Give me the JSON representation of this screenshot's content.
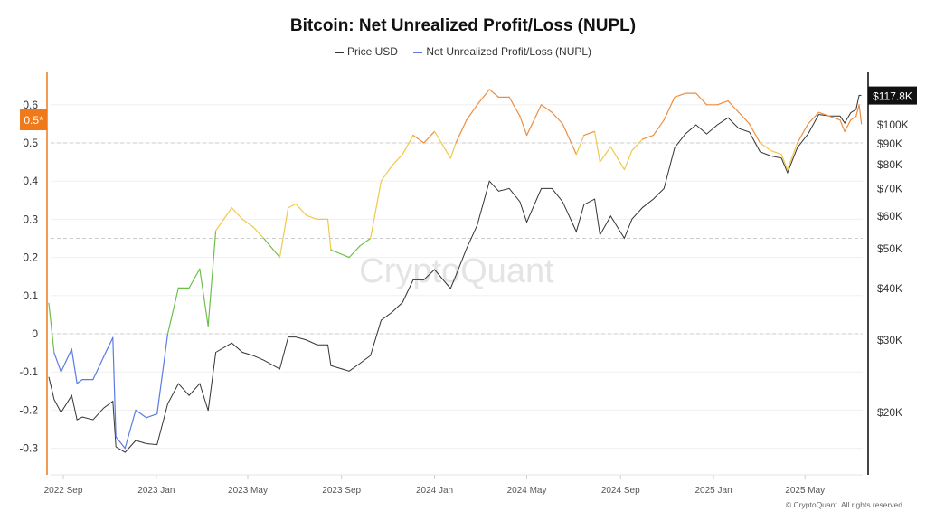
{
  "chart_data": {
    "type": "line",
    "title": "Bitcoin: Net Unrealized Profit/Loss (NUPL)",
    "series": [
      {
        "name": "Price USD",
        "axis": "right",
        "scale": "log",
        "color": "#333333"
      },
      {
        "name": "Net Unrealized Profit/Loss (NUPL)",
        "axis": "left",
        "color": "#5b7be0",
        "color_bands": [
          {
            "range": [
              -1,
              0
            ],
            "color": "#5b7be0"
          },
          {
            "range": [
              0,
              0.25
            ],
            "color": "#6cc04a"
          },
          {
            "range": [
              0.25,
              0.5
            ],
            "color": "#f0c94a"
          },
          {
            "range": [
              0.5,
              1
            ],
            "color": "#f08c3c"
          }
        ]
      }
    ],
    "columns": [
      "date",
      "price_usd_k",
      "nupl"
    ],
    "data": [
      [
        "2022-08-13",
        24.4,
        0.08
      ],
      [
        "2022-08-20",
        21.5,
        -0.05
      ],
      [
        "2022-08-29",
        20.0,
        -0.1
      ],
      [
        "2022-09-12",
        22.0,
        -0.04
      ],
      [
        "2022-09-19",
        19.2,
        -0.13
      ],
      [
        "2022-09-26",
        19.5,
        -0.12
      ],
      [
        "2022-10-10",
        19.2,
        -0.12
      ],
      [
        "2022-10-24",
        20.5,
        -0.06
      ],
      [
        "2022-11-05",
        21.3,
        -0.01
      ],
      [
        "2022-11-09",
        16.5,
        -0.27
      ],
      [
        "2022-11-21",
        16.0,
        -0.3
      ],
      [
        "2022-12-05",
        17.1,
        -0.2
      ],
      [
        "2022-12-19",
        16.8,
        -0.22
      ],
      [
        "2023-01-02",
        16.7,
        -0.21
      ],
      [
        "2023-01-16",
        21.0,
        0.0
      ],
      [
        "2023-01-30",
        23.5,
        0.12
      ],
      [
        "2023-02-13",
        22.0,
        0.12
      ],
      [
        "2023-02-27",
        23.5,
        0.17
      ],
      [
        "2023-03-10",
        20.2,
        0.02
      ],
      [
        "2023-03-20",
        28.0,
        0.27
      ],
      [
        "2023-04-10",
        29.5,
        0.33
      ],
      [
        "2023-04-24",
        28.0,
        0.3
      ],
      [
        "2023-05-08",
        27.5,
        0.28
      ],
      [
        "2023-05-22",
        26.8,
        0.25
      ],
      [
        "2023-06-12",
        25.5,
        0.2
      ],
      [
        "2023-06-23",
        30.5,
        0.33
      ],
      [
        "2023-07-03",
        30.5,
        0.34
      ],
      [
        "2023-07-17",
        30.0,
        0.31
      ],
      [
        "2023-07-31",
        29.2,
        0.3
      ],
      [
        "2023-08-14",
        29.2,
        0.3
      ],
      [
        "2023-08-18",
        26.0,
        0.22
      ],
      [
        "2023-09-11",
        25.2,
        0.2
      ],
      [
        "2023-09-25",
        26.3,
        0.23
      ],
      [
        "2023-10-09",
        27.5,
        0.25
      ],
      [
        "2023-10-23",
        33.5,
        0.4
      ],
      [
        "2023-11-06",
        35.0,
        0.44
      ],
      [
        "2023-11-20",
        37.0,
        0.47
      ],
      [
        "2023-12-04",
        42.0,
        0.52
      ],
      [
        "2023-12-18",
        42.0,
        0.5
      ],
      [
        "2024-01-01",
        44.5,
        0.53
      ],
      [
        "2024-01-22",
        40.0,
        0.46
      ],
      [
        "2024-01-29",
        43.0,
        0.5
      ],
      [
        "2024-02-12",
        50.0,
        0.56
      ],
      [
        "2024-02-26",
        57.0,
        0.6
      ],
      [
        "2024-03-13",
        73.0,
        0.64
      ],
      [
        "2024-03-25",
        69.0,
        0.62
      ],
      [
        "2024-04-08",
        70.0,
        0.62
      ],
      [
        "2024-04-22",
        65.0,
        0.57
      ],
      [
        "2024-05-01",
        58.0,
        0.52
      ],
      [
        "2024-05-20",
        70.0,
        0.6
      ],
      [
        "2024-06-03",
        70.0,
        0.58
      ],
      [
        "2024-06-17",
        65.0,
        0.55
      ],
      [
        "2024-07-05",
        55.0,
        0.47
      ],
      [
        "2024-07-15",
        64.0,
        0.52
      ],
      [
        "2024-07-29",
        66.0,
        0.53
      ],
      [
        "2024-08-05",
        54.0,
        0.45
      ],
      [
        "2024-08-19",
        60.0,
        0.49
      ],
      [
        "2024-09-06",
        53.0,
        0.43
      ],
      [
        "2024-09-16",
        59.0,
        0.48
      ],
      [
        "2024-09-30",
        63.0,
        0.51
      ],
      [
        "2024-10-14",
        66.0,
        0.52
      ],
      [
        "2024-10-28",
        70.0,
        0.56
      ],
      [
        "2024-11-11",
        88.0,
        0.62
      ],
      [
        "2024-11-25",
        95.0,
        0.63
      ],
      [
        "2024-12-09",
        100.0,
        0.63
      ],
      [
        "2024-12-23",
        95.0,
        0.6
      ],
      [
        "2025-01-06",
        100.0,
        0.6
      ],
      [
        "2025-01-20",
        104.0,
        0.61
      ],
      [
        "2025-02-03",
        98.0,
        0.58
      ],
      [
        "2025-02-17",
        96.0,
        0.55
      ],
      [
        "2025-03-03",
        86.0,
        0.5
      ],
      [
        "2025-03-17",
        84.0,
        0.48
      ],
      [
        "2025-03-31",
        83.0,
        0.47
      ],
      [
        "2025-04-08",
        76.5,
        0.43
      ],
      [
        "2025-04-21",
        88.0,
        0.5
      ],
      [
        "2025-05-05",
        95.0,
        0.55
      ],
      [
        "2025-05-19",
        106.0,
        0.58
      ],
      [
        "2025-06-02",
        105.0,
        0.57
      ],
      [
        "2025-06-16",
        105.0,
        0.56
      ],
      [
        "2025-06-22",
        101.0,
        0.53
      ],
      [
        "2025-06-30",
        107.0,
        0.56
      ],
      [
        "2025-07-07",
        109.0,
        0.57
      ],
      [
        "2025-07-11",
        118.0,
        0.6
      ],
      [
        "2025-07-14",
        117.8,
        0.55
      ]
    ],
    "left_axis": {
      "range": [
        -0.33,
        0.68
      ],
      "ticks": [
        "0.6",
        "0.5",
        "0.4",
        "0.3",
        "0.2",
        "0.1",
        "0",
        "-0.1",
        "-0.2",
        "-0.3"
      ],
      "dashed_lines": [
        0.5,
        0.25,
        0
      ]
    },
    "right_axis": {
      "scale": "log",
      "ticks": [
        "$100K",
        "$90K",
        "$80K",
        "$70K",
        "$60K",
        "$50K",
        "$40K",
        "$30K",
        "$20K"
      ],
      "tick_values_k": [
        100,
        90,
        80,
        70,
        60,
        50,
        40,
        30,
        20
      ]
    },
    "x_ticks": [
      "2022 Sep",
      "2023 Jan",
      "2023 May",
      "2023 Sep",
      "2024 Jan",
      "2024 May",
      "2024 Sep",
      "2025 Jan",
      "2025 May"
    ],
    "x_tick_dates": [
      "2022-09-01",
      "2023-01-01",
      "2023-05-01",
      "2023-09-01",
      "2024-01-01",
      "2024-05-01",
      "2024-09-01",
      "2025-01-01",
      "2025-05-01"
    ],
    "current_price_label": "$117.8K",
    "current_nupl_label": "0.5*",
    "grid": true,
    "legend": "top-center"
  },
  "watermark": "CryptoQuant",
  "copyright": "© CryptoQuant. All rights reserved",
  "colors": {
    "accent": "#f07a1a",
    "price": "#333333"
  }
}
